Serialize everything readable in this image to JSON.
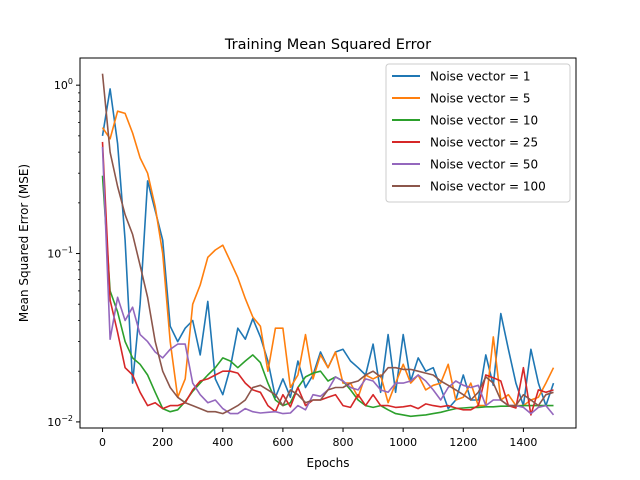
{
  "chart_data": {
    "type": "line",
    "title": "Training Mean Squared Error",
    "xlabel": "Epochs",
    "ylabel": "Mean Squared Error (MSE)",
    "xlim": [
      -75,
      1575
    ],
    "ylim": [
      0.0092,
      1.45
    ],
    "yscale": "log",
    "grid": false,
    "legend_position": "upper-right",
    "xticks": [
      {
        "value": 0,
        "label": "0"
      },
      {
        "value": 200,
        "label": "200"
      },
      {
        "value": 400,
        "label": "400"
      },
      {
        "value": 600,
        "label": "600"
      },
      {
        "value": 800,
        "label": "800"
      },
      {
        "value": 1000,
        "label": "1000"
      },
      {
        "value": 1200,
        "label": "1200"
      },
      {
        "value": 1400,
        "label": "1400"
      }
    ],
    "yticks": [
      {
        "value": 0.01,
        "base": "10",
        "exp": "−2"
      },
      {
        "value": 0.1,
        "base": "10",
        "exp": "−1"
      },
      {
        "value": 1,
        "base": "10",
        "exp": "0"
      }
    ],
    "x": [
      0,
      25,
      50,
      75,
      100,
      125,
      150,
      175,
      200,
      225,
      250,
      275,
      300,
      325,
      350,
      375,
      400,
      425,
      450,
      475,
      500,
      525,
      550,
      575,
      600,
      625,
      650,
      675,
      700,
      725,
      750,
      775,
      800,
      825,
      850,
      875,
      900,
      925,
      950,
      975,
      1000,
      1025,
      1050,
      1075,
      1100,
      1125,
      1150,
      1175,
      1200,
      1225,
      1250,
      1275,
      1300,
      1325,
      1350,
      1375,
      1400,
      1425,
      1450,
      1475,
      1500
    ],
    "series": [
      {
        "name": "Noise vector = 1",
        "color": "#1f77b4",
        "values": [
          0.5,
          0.95,
          0.45,
          0.12,
          0.017,
          0.05,
          0.27,
          0.18,
          0.12,
          0.037,
          0.03,
          0.036,
          0.04,
          0.025,
          0.052,
          0.018,
          0.0145,
          0.021,
          0.036,
          0.031,
          0.041,
          0.032,
          0.023,
          0.014,
          0.018,
          0.014,
          0.023,
          0.016,
          0.019,
          0.026,
          0.021,
          0.026,
          0.027,
          0.023,
          0.021,
          0.019,
          0.029,
          0.015,
          0.033,
          0.015,
          0.033,
          0.0175,
          0.024,
          0.02,
          0.021,
          0.016,
          0.012,
          0.0135,
          0.019,
          0.0135,
          0.0135,
          0.025,
          0.0165,
          0.044,
          0.027,
          0.017,
          0.0125,
          0.027,
          0.017,
          0.0125,
          0.017
        ]
      },
      {
        "name": "Noise vector = 5",
        "color": "#ff7f0e",
        "values": [
          0.56,
          0.48,
          0.7,
          0.68,
          0.52,
          0.37,
          0.3,
          0.19,
          0.1,
          0.03,
          0.014,
          0.018,
          0.05,
          0.065,
          0.095,
          0.105,
          0.112,
          0.09,
          0.072,
          0.054,
          0.042,
          0.037,
          0.02,
          0.036,
          0.036,
          0.016,
          0.019,
          0.033,
          0.018,
          0.025,
          0.021,
          0.026,
          0.017,
          0.017,
          0.014,
          0.019,
          0.018,
          0.019,
          0.013,
          0.017,
          0.022,
          0.017,
          0.019,
          0.0155,
          0.0165,
          0.017,
          0.022,
          0.0135,
          0.014,
          0.017,
          0.0125,
          0.0125,
          0.032,
          0.0135,
          0.0145,
          0.0125,
          0.0125,
          0.0135,
          0.014,
          0.017,
          0.021
        ]
      },
      {
        "name": "Noise vector = 10",
        "color": "#2ca02c",
        "values": [
          0.29,
          0.06,
          0.045,
          0.03,
          0.024,
          0.022,
          0.019,
          0.015,
          0.012,
          0.0115,
          0.0118,
          0.0132,
          0.0152,
          0.017,
          0.019,
          0.021,
          0.024,
          0.023,
          0.021,
          0.023,
          0.025,
          0.0225,
          0.017,
          0.0135,
          0.0125,
          0.013,
          0.016,
          0.0185,
          0.0195,
          0.02,
          0.0175,
          0.0185,
          0.0175,
          0.0155,
          0.0135,
          0.0125,
          0.0122,
          0.0125,
          0.0118,
          0.0112,
          0.011,
          0.0108,
          0.0109,
          0.011,
          0.0112,
          0.0114,
          0.0117,
          0.012,
          0.0121,
          0.0122,
          0.0122,
          0.0123,
          0.0123,
          0.0124,
          0.0124,
          0.0124,
          0.0125,
          0.0125,
          0.0125,
          0.0125,
          0.0125
        ]
      },
      {
        "name": "Noise vector = 25",
        "color": "#d62728",
        "values": [
          0.46,
          0.053,
          0.034,
          0.021,
          0.019,
          0.015,
          0.0125,
          0.013,
          0.012,
          0.0125,
          0.0125,
          0.013,
          0.0155,
          0.0175,
          0.018,
          0.019,
          0.02,
          0.02,
          0.0195,
          0.017,
          0.0155,
          0.015,
          0.0125,
          0.0115,
          0.0145,
          0.0123,
          0.016,
          0.0125,
          0.0135,
          0.0135,
          0.014,
          0.0145,
          0.0125,
          0.0122,
          0.0145,
          0.0125,
          0.0145,
          0.0125,
          0.0125,
          0.0122,
          0.0123,
          0.0125,
          0.012,
          0.0128,
          0.0125,
          0.0123,
          0.0125,
          0.0121,
          0.0118,
          0.0118,
          0.0125,
          0.019,
          0.0183,
          0.0175,
          0.0125,
          0.0121,
          0.021,
          0.011,
          0.0155,
          0.015,
          0.0155
        ]
      },
      {
        "name": "Noise vector = 50",
        "color": "#9467bd",
        "values": [
          0.43,
          0.031,
          0.055,
          0.04,
          0.048,
          0.033,
          0.03,
          0.026,
          0.024,
          0.027,
          0.029,
          0.029,
          0.017,
          0.0145,
          0.013,
          0.0135,
          0.012,
          0.0112,
          0.0112,
          0.012,
          0.0115,
          0.0113,
          0.0114,
          0.0115,
          0.0112,
          0.0113,
          0.0125,
          0.0118,
          0.0145,
          0.0142,
          0.0155,
          0.0185,
          0.0175,
          0.016,
          0.0155,
          0.018,
          0.0175,
          0.0155,
          0.015,
          0.017,
          0.017,
          0.0175,
          0.019,
          0.0175,
          0.0155,
          0.0135,
          0.016,
          0.0175,
          0.0165,
          0.016,
          0.0165,
          0.0125,
          0.0135,
          0.0135,
          0.0125,
          0.0125,
          0.0122,
          0.0112,
          0.0122,
          0.0125,
          0.011
        ]
      },
      {
        "name": "Noise vector = 100",
        "color": "#8c564b",
        "values": [
          1.17,
          0.4,
          0.25,
          0.17,
          0.13,
          0.085,
          0.055,
          0.03,
          0.02,
          0.016,
          0.014,
          0.013,
          0.0125,
          0.012,
          0.0115,
          0.0115,
          0.0112,
          0.0118,
          0.0125,
          0.0135,
          0.016,
          0.0165,
          0.0155,
          0.0145,
          0.0125,
          0.0155,
          0.0145,
          0.013,
          0.0135,
          0.0135,
          0.0155,
          0.016,
          0.016,
          0.017,
          0.0175,
          0.019,
          0.02,
          0.0185,
          0.021,
          0.021,
          0.0205,
          0.0205,
          0.02,
          0.0195,
          0.019,
          0.0175,
          0.0165,
          0.0155,
          0.0145,
          0.0135,
          0.015,
          0.0185,
          0.017,
          0.0135,
          0.0125,
          0.0125,
          0.0145,
          0.0135,
          0.0125,
          0.0145,
          0.015
        ]
      }
    ]
  }
}
